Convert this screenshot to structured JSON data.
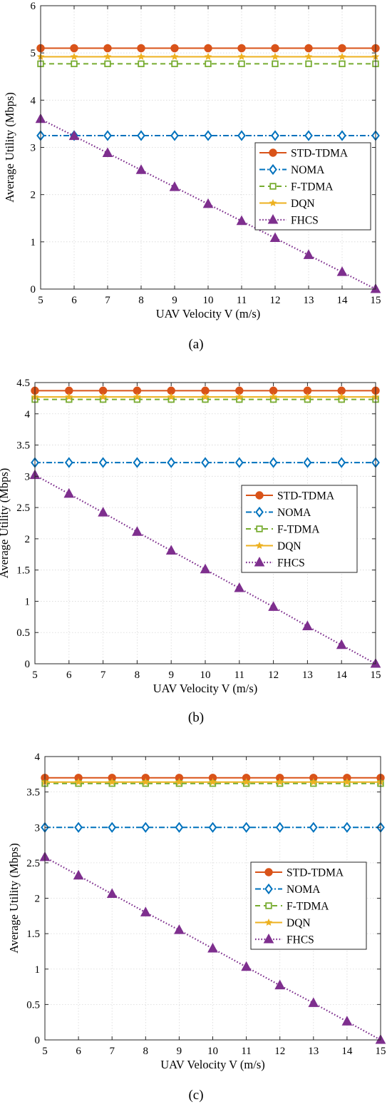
{
  "figure": {
    "panel_labels": [
      "(a)",
      "(b)",
      "(c)"
    ]
  },
  "colors": {
    "STD-TDMA": "#D95319",
    "NOMA": "#0072BD",
    "F-TDMA": "#77AC30",
    "DQN": "#EDB120",
    "FHCS": "#7E2F8E",
    "grid": "#d8d8d8",
    "axis": "#262626"
  },
  "chart_data": [
    {
      "type": "line",
      "panel": "(a)",
      "xlabel": "UAV Velocity V (m/s)",
      "ylabel": "Average Utility (Mbps)",
      "xlim": [
        5,
        15
      ],
      "ylim": [
        0,
        6
      ],
      "xticks": [
        "5",
        "6",
        "7",
        "8",
        "9",
        "10",
        "11",
        "12",
        "13",
        "14",
        "15"
      ],
      "yticks": [
        "0",
        "1",
        "2",
        "3",
        "4",
        "5",
        "6"
      ],
      "grid": true,
      "legend_position": "right",
      "x": [
        5,
        6,
        7,
        8,
        9,
        10,
        11,
        12,
        13,
        14,
        15
      ],
      "series": [
        {
          "name": "STD-TDMA",
          "values": [
            5.1,
            5.1,
            5.1,
            5.1,
            5.1,
            5.1,
            5.1,
            5.1,
            5.1,
            5.1,
            5.1
          ]
        },
        {
          "name": "NOMA",
          "values": [
            3.25,
            3.25,
            3.25,
            3.25,
            3.25,
            3.25,
            3.25,
            3.25,
            3.25,
            3.25,
            3.25
          ]
        },
        {
          "name": "F-TDMA",
          "values": [
            4.77,
            4.77,
            4.77,
            4.77,
            4.77,
            4.77,
            4.77,
            4.77,
            4.77,
            4.77,
            4.77
          ]
        },
        {
          "name": "DQN",
          "values": [
            4.92,
            4.92,
            4.92,
            4.92,
            4.92,
            4.92,
            4.92,
            4.92,
            4.92,
            4.92,
            4.92
          ]
        },
        {
          "name": "FHCS",
          "values": [
            3.6,
            3.24,
            2.88,
            2.52,
            2.16,
            1.8,
            1.44,
            1.08,
            0.72,
            0.36,
            0
          ]
        }
      ]
    },
    {
      "type": "line",
      "panel": "(b)",
      "xlabel": "UAV Velocity V (m/s)",
      "ylabel": "Average Utility (Mbps)",
      "xlim": [
        5,
        15
      ],
      "ylim": [
        0,
        4.5
      ],
      "xticks": [
        "5",
        "6",
        "7",
        "8",
        "9",
        "10",
        "11",
        "12",
        "13",
        "14",
        "15"
      ],
      "yticks": [
        "0",
        "0.5",
        "1",
        "1.5",
        "2",
        "2.5",
        "3",
        "3.5",
        "4",
        "4.5"
      ],
      "grid": true,
      "legend_position": "right",
      "x": [
        5,
        6,
        7,
        8,
        9,
        10,
        11,
        12,
        13,
        14,
        15
      ],
      "series": [
        {
          "name": "STD-TDMA",
          "values": [
            4.37,
            4.37,
            4.37,
            4.37,
            4.37,
            4.37,
            4.37,
            4.37,
            4.37,
            4.37,
            4.37
          ]
        },
        {
          "name": "NOMA",
          "values": [
            3.22,
            3.22,
            3.22,
            3.22,
            3.22,
            3.22,
            3.22,
            3.22,
            3.22,
            3.22,
            3.22
          ]
        },
        {
          "name": "F-TDMA",
          "values": [
            4.23,
            4.23,
            4.23,
            4.23,
            4.23,
            4.23,
            4.23,
            4.23,
            4.23,
            4.23,
            4.23
          ]
        },
        {
          "name": "DQN",
          "values": [
            4.27,
            4.27,
            4.27,
            4.27,
            4.27,
            4.27,
            4.27,
            4.27,
            4.27,
            4.27,
            4.27
          ]
        },
        {
          "name": "FHCS",
          "values": [
            3.02,
            2.72,
            2.42,
            2.11,
            1.81,
            1.51,
            1.21,
            0.91,
            0.6,
            0.3,
            0
          ]
        }
      ]
    },
    {
      "type": "line",
      "panel": "(c)",
      "xlabel": "UAV Velocity V (m/s)",
      "ylabel": "Average Utility (Mbps)",
      "xlim": [
        5,
        15
      ],
      "ylim": [
        0,
        4
      ],
      "xticks": [
        "5",
        "6",
        "7",
        "8",
        "9",
        "10",
        "11",
        "12",
        "13",
        "14",
        "15"
      ],
      "yticks": [
        "0",
        "0.5",
        "1",
        "1.5",
        "2",
        "2.5",
        "3",
        "3.5",
        "4"
      ],
      "grid": true,
      "legend_position": "right",
      "x": [
        5,
        6,
        7,
        8,
        9,
        10,
        11,
        12,
        13,
        14,
        15
      ],
      "series": [
        {
          "name": "STD-TDMA",
          "values": [
            3.7,
            3.7,
            3.7,
            3.7,
            3.7,
            3.7,
            3.7,
            3.7,
            3.7,
            3.7,
            3.7
          ]
        },
        {
          "name": "NOMA",
          "values": [
            3.0,
            3.0,
            3.0,
            3.0,
            3.0,
            3.0,
            3.0,
            3.0,
            3.0,
            3.0,
            3.0
          ]
        },
        {
          "name": "F-TDMA",
          "values": [
            3.62,
            3.62,
            3.62,
            3.62,
            3.62,
            3.62,
            3.62,
            3.62,
            3.62,
            3.62,
            3.62
          ]
        },
        {
          "name": "DQN",
          "values": [
            3.64,
            3.64,
            3.64,
            3.64,
            3.64,
            3.64,
            3.64,
            3.64,
            3.64,
            3.64,
            3.64
          ]
        },
        {
          "name": "FHCS",
          "values": [
            2.58,
            2.32,
            2.06,
            1.8,
            1.55,
            1.29,
            1.03,
            0.77,
            0.52,
            0.26,
            0
          ]
        }
      ]
    }
  ]
}
